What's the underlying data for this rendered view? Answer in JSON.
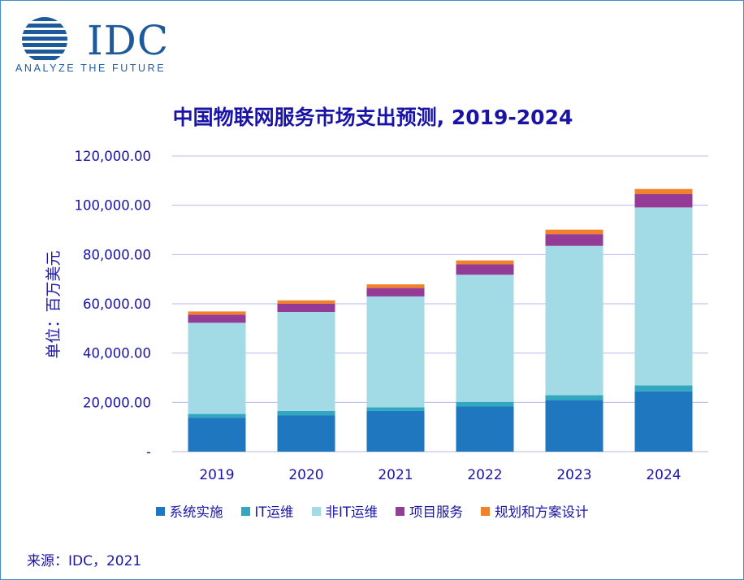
{
  "brand": {
    "logo_text": "IDC",
    "tagline": "ANALYZE THE FUTURE",
    "logo_color": "#1c5a9c"
  },
  "source": "来源：IDC，2021",
  "chart_data": {
    "type": "bar",
    "stacked": true,
    "title": "中国物联网服务市场支出预测, 2019-2024",
    "xlabel": "",
    "ylabel": "单位：百万美元",
    "categories": [
      "2019",
      "2020",
      "2021",
      "2022",
      "2023",
      "2024"
    ],
    "ylim": [
      0,
      120000
    ],
    "yticks": [
      0,
      20000,
      40000,
      60000,
      80000,
      100000,
      120000
    ],
    "ytick_labels": [
      "-",
      "20,000.00",
      "40,000.00",
      "60,000.00",
      "80,000.00",
      "100,000.00",
      "120,000.00"
    ],
    "grid": true,
    "legend_position": "bottom",
    "series": [
      {
        "name": "系统实施",
        "color": "#1f77c0",
        "values": [
          13800,
          14800,
          16500,
          18300,
          21000,
          24500
        ]
      },
      {
        "name": "IT运维",
        "color": "#31a8c0",
        "values": [
          1500,
          1700,
          1500,
          1900,
          1900,
          2400
        ]
      },
      {
        "name": "非IT运维",
        "color": "#a2dbe6",
        "values": [
          37000,
          40200,
          45000,
          51600,
          60600,
          72200
        ]
      },
      {
        "name": "项目服务",
        "color": "#933b97",
        "values": [
          3300,
          3300,
          3400,
          4200,
          4800,
          5400
        ]
      },
      {
        "name": "规划和方案设计",
        "color": "#f0822c",
        "values": [
          1300,
          1400,
          1500,
          1600,
          1800,
          2100
        ]
      }
    ]
  }
}
